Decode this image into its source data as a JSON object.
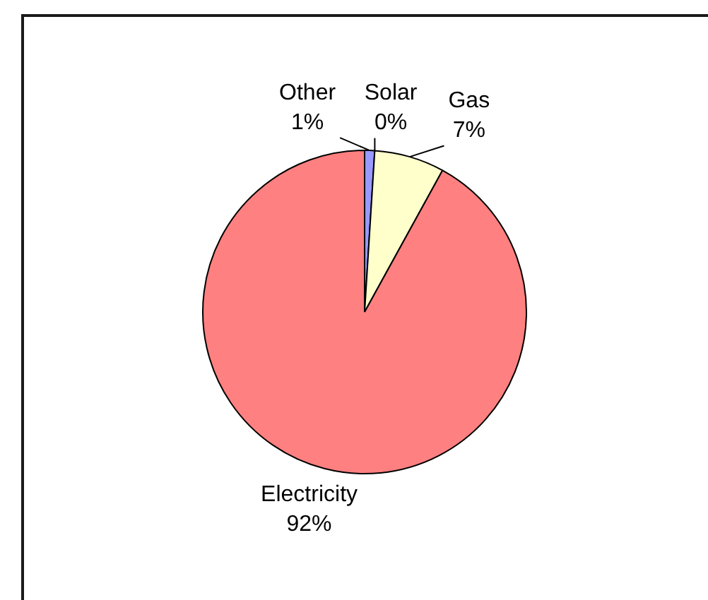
{
  "chart_data": {
    "type": "pie",
    "categories": [
      "Other",
      "Solar",
      "Gas",
      "Electricity"
    ],
    "values": [
      1,
      0,
      7,
      92
    ],
    "colors": [
      "#9999ff",
      "#993366",
      "#ffffcc",
      "#ff8080"
    ],
    "value_labels": [
      "1%",
      "0%",
      "7%",
      "92%"
    ]
  }
}
